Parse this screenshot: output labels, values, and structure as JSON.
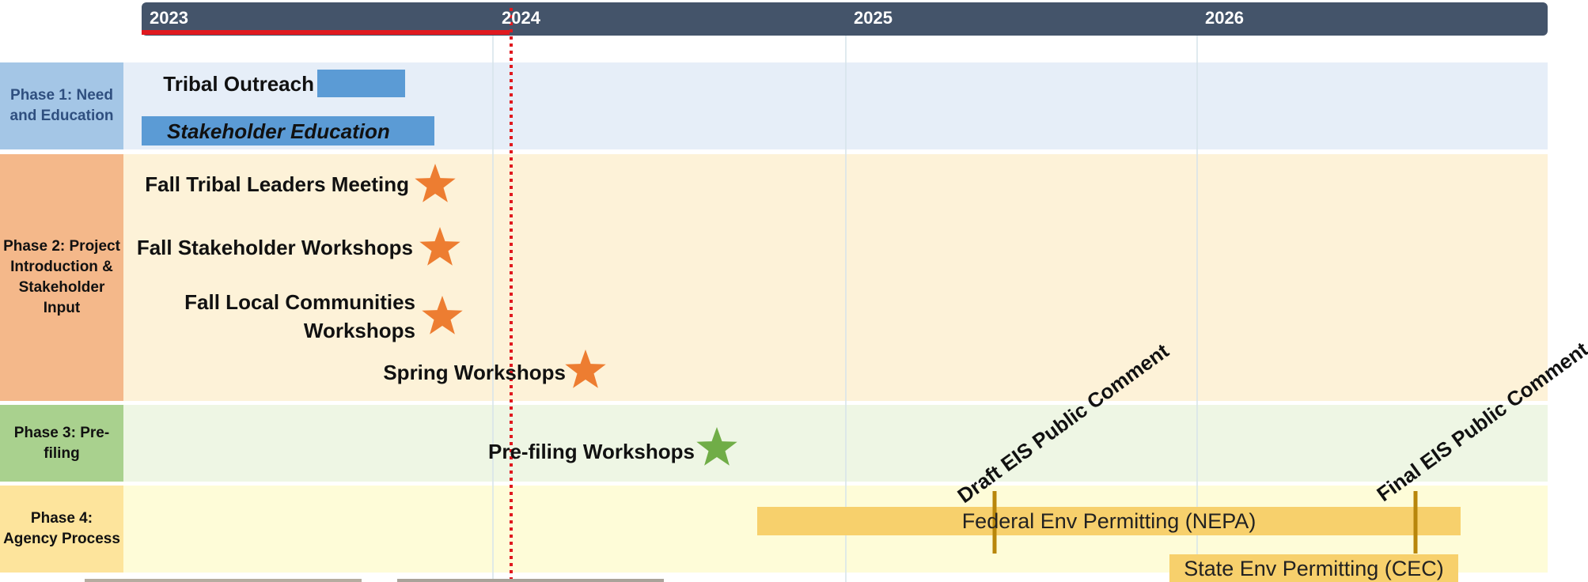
{
  "timeline": {
    "years": [
      "2023",
      "2024",
      "2025",
      "2026"
    ]
  },
  "phases": [
    {
      "label": "Phase 1: Need and Education"
    },
    {
      "label": "Phase 2: Project Introduction & Stakeholder Input"
    },
    {
      "label": "Phase 3: Pre-filing"
    },
    {
      "label": "Phase 4: Agency Process"
    }
  ],
  "items": [
    {
      "label": "Tribal Outreach"
    },
    {
      "label": "Stakeholder Education"
    },
    {
      "label": "Fall Tribal Leaders Meeting"
    },
    {
      "label": "Fall Stakeholder Workshops"
    },
    {
      "label": "Fall Local Communities Workshops"
    },
    {
      "label": "Spring Workshops"
    },
    {
      "label": "Pre-filing Workshops"
    },
    {
      "label": "Federal Env Permitting (NEPA)"
    },
    {
      "label": "State Env Permitting (CEC)"
    }
  ],
  "milestones": [
    {
      "label": "Draft EIS Public Comment"
    },
    {
      "label": "Final EIS Public Comment"
    }
  ]
}
